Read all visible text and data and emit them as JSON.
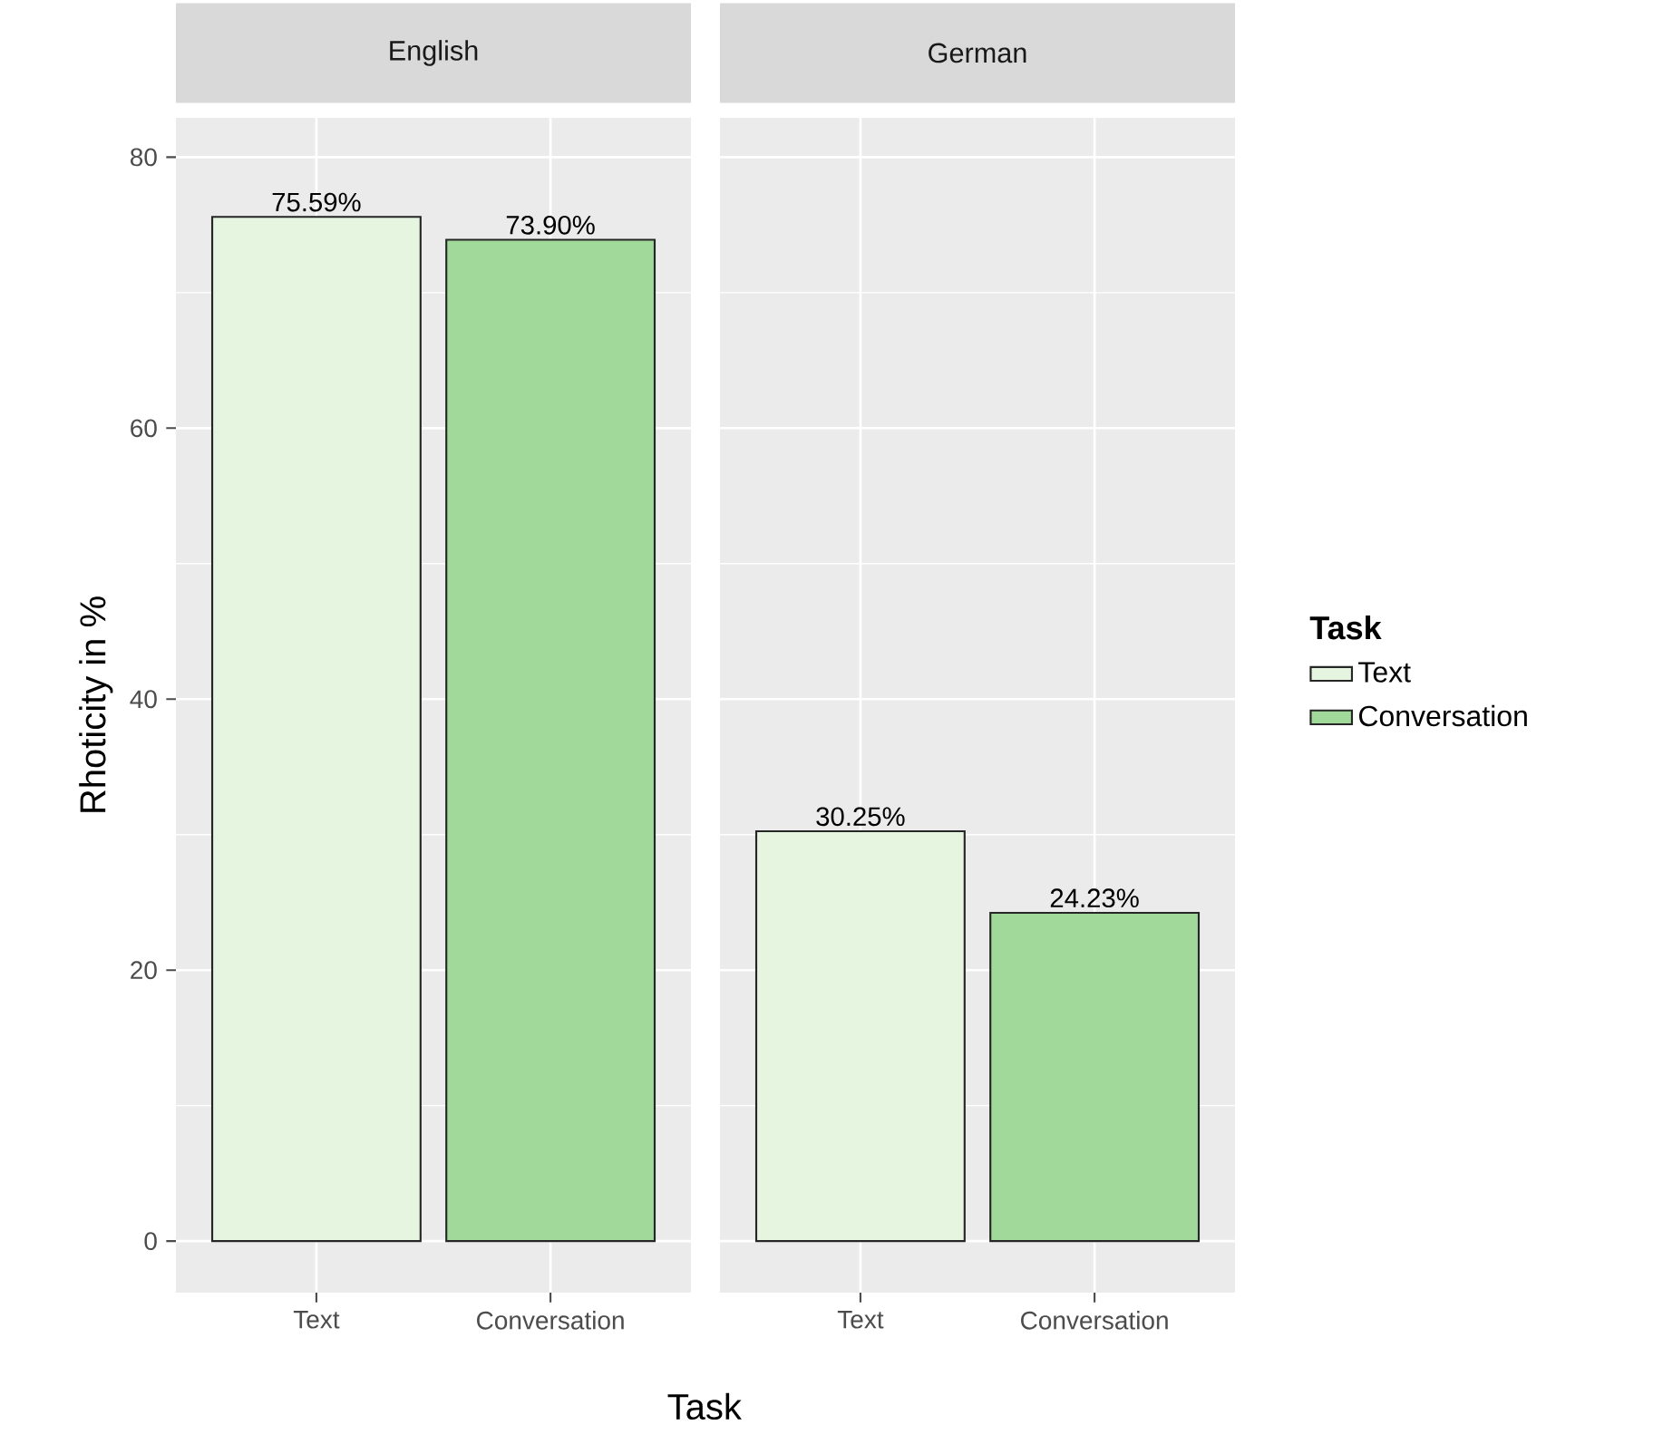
{
  "chart_data": [
    {
      "type": "bar",
      "title": "English",
      "xlabel": "Task",
      "ylabel": "Rhoticity in %",
      "categories": [
        "Text",
        "Conversation"
      ],
      "series": [
        {
          "color": "#e5f5e0",
          "values": [
            75.59,
            null
          ],
          "value_labels": [
            "75.59%",
            null
          ]
        },
        {
          "color": "#a1d99b",
          "values": [
            null,
            73.9
          ],
          "value_labels": [
            null,
            "73.90%"
          ]
        }
      ],
      "ylim": [
        -3.8,
        82.9
      ],
      "yticks": [
        0,
        20,
        40,
        60,
        80
      ],
      "grid": true
    },
    {
      "type": "bar",
      "title": "German",
      "legend_title": "Task",
      "categories": [
        "Text",
        "Conversation"
      ],
      "series": [
        {
          "name": "Text",
          "color": "#e5f5e0",
          "values": [
            30.25,
            null
          ],
          "value_labels": [
            "30.25%",
            null
          ]
        },
        {
          "name": "Conversation",
          "color": "#a1d99b",
          "values": [
            null,
            24.23
          ],
          "value_labels": [
            null,
            "24.23%"
          ]
        }
      ],
      "ylim": [
        -3.8,
        82.9
      ],
      "yticks": [
        0,
        20,
        40,
        60,
        80
      ],
      "grid": true,
      "tick_labels": "x",
      "legend": "right"
    }
  ]
}
